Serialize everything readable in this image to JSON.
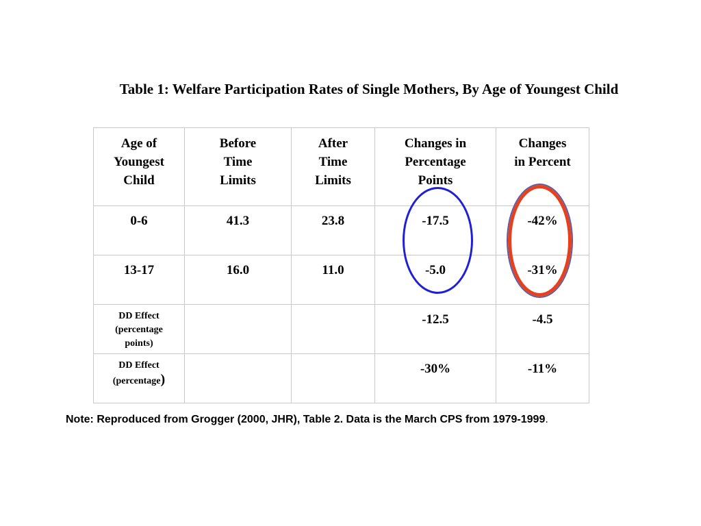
{
  "title": "Table 1: Welfare Participation Rates of Single Mothers, By Age of Youngest Child",
  "table": {
    "headers": [
      [
        "Age of",
        "Youngest",
        "Child"
      ],
      [
        "Before",
        "Time",
        "Limits"
      ],
      [
        "After",
        "Time",
        "Limits"
      ],
      [
        "Changes in",
        "Percentage",
        "Points"
      ],
      [
        "Changes",
        "in Percent"
      ]
    ],
    "rows": [
      {
        "age": "0-6",
        "before": "41.3",
        "after": "23.8",
        "change_pp": "-17.5",
        "change_pct": "-42%"
      },
      {
        "age": "13-17",
        "before": "16.0",
        "after": "11.0",
        "change_pp": "-5.0",
        "change_pct": "-31%"
      }
    ],
    "dd_pp": {
      "label": [
        "DD Effect",
        "(percentage",
        "points)"
      ],
      "change_pp": "-12.5",
      "change_pct": "-4.5"
    },
    "dd_pct": {
      "label": [
        "DD Effect",
        "(percentage",
        ")"
      ],
      "change_pp": "-30%",
      "change_pct": "-11%"
    }
  },
  "highlight_colors": {
    "blue_ellipse": "#1f1fd6",
    "red_ellipse": "#e5411e"
  },
  "note": "Note: Reproduced from Grogger (2000, JHR), Table 2. Data is the March CPS from 1979-1999",
  "note_end": "."
}
